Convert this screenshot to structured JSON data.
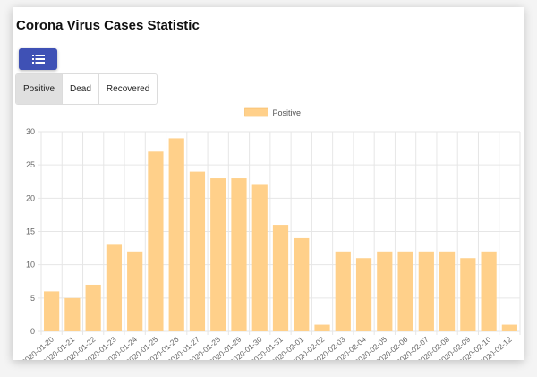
{
  "page": {
    "title": "Corona Virus Cases Statistic"
  },
  "toolbar": {
    "list_button_icon": "list-icon",
    "accent": "#3f51b5"
  },
  "tabs": [
    {
      "label": "Positive",
      "active": true
    },
    {
      "label": "Dead",
      "active": false
    },
    {
      "label": "Recovered",
      "active": false
    }
  ],
  "chart_data": {
    "type": "bar",
    "categories": [
      "2020-01-20",
      "2020-01-21",
      "2020-01-22",
      "2020-01-23",
      "2020-01-24",
      "2020-01-25",
      "2020-01-26",
      "2020-01-27",
      "2020-01-28",
      "2020-01-29",
      "2020-01-30",
      "2020-01-31",
      "2020-02-01",
      "2020-02-02",
      "2020-02-03",
      "2020-02-04",
      "2020-02-05",
      "2020-02-06",
      "2020-02-07",
      "2020-02-08",
      "2020-02-09",
      "2020-02-10",
      "2020-02-12"
    ],
    "series": [
      {
        "name": "Positive",
        "values": [
          6,
          5,
          7,
          13,
          12,
          27,
          29,
          24,
          23,
          23,
          22,
          16,
          14,
          1,
          12,
          11,
          12,
          12,
          12,
          12,
          11,
          12,
          1
        ],
        "color": "#ffd08a"
      }
    ],
    "yticks": [
      0,
      5,
      10,
      15,
      20,
      25,
      30
    ],
    "ylim": [
      0,
      30
    ],
    "grid": true,
    "legend_position": "top-center",
    "title": "",
    "xlabel": "",
    "ylabel": ""
  }
}
